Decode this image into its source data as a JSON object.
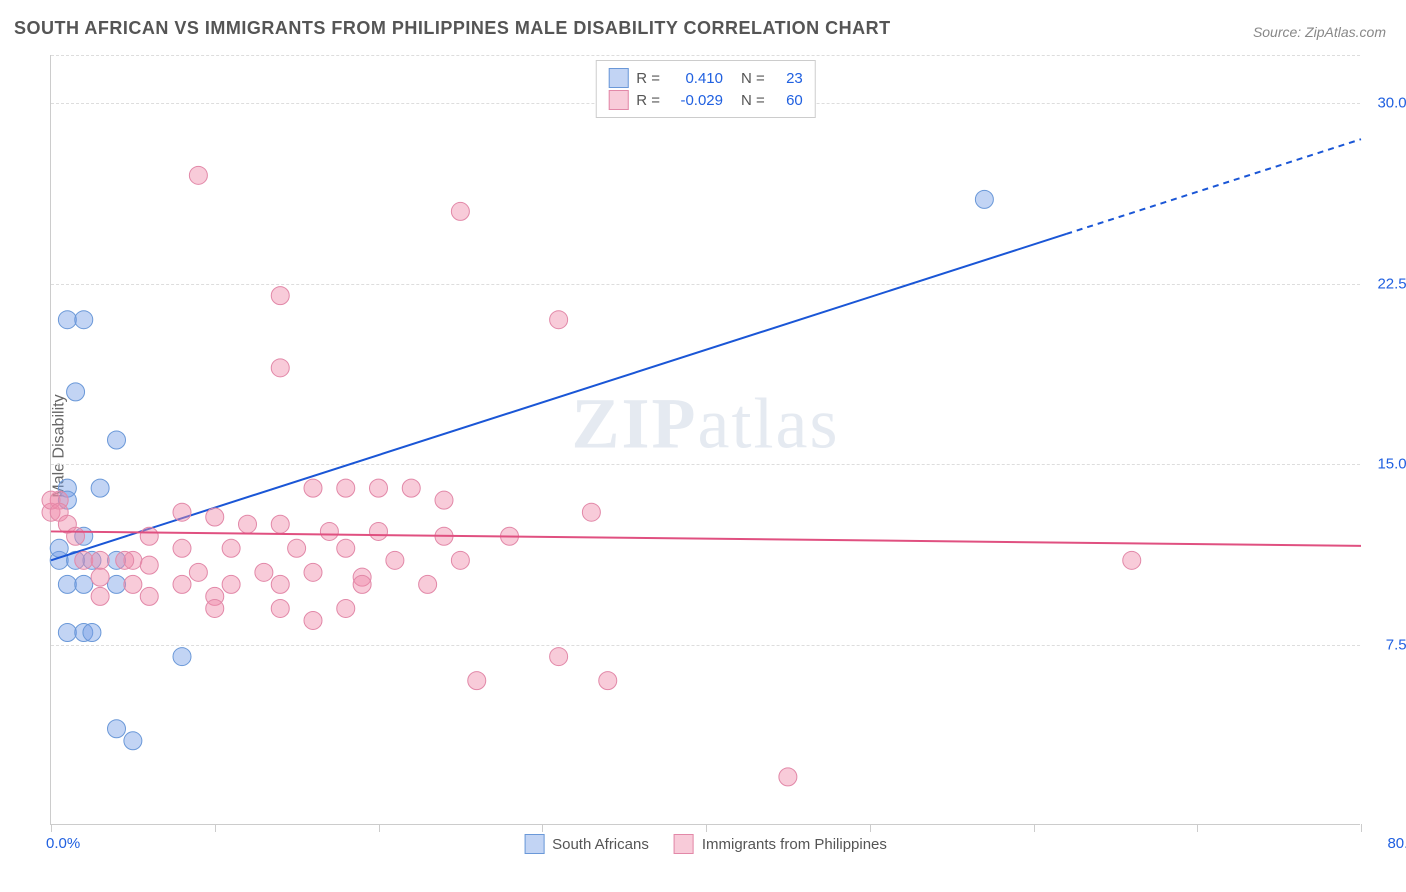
{
  "title": "SOUTH AFRICAN VS IMMIGRANTS FROM PHILIPPINES MALE DISABILITY CORRELATION CHART",
  "source": "Source: ZipAtlas.com",
  "ylabel": "Male Disability",
  "watermark": {
    "bold": "ZIP",
    "thin": "atlas"
  },
  "chart": {
    "type": "scatter",
    "xlim": [
      0,
      80
    ],
    "ylim": [
      0,
      32
    ],
    "x_min_label": "0.0%",
    "x_max_label": "80.0%",
    "x_max_label_color": "#2060e0",
    "x_min_label_color": "#2060e0",
    "yticks": [
      7.5,
      15.0,
      22.5,
      30.0
    ],
    "ytick_labels": [
      "7.5%",
      "15.0%",
      "22.5%",
      "30.0%"
    ],
    "ytick_color": "#2060e0",
    "xtick_positions": [
      0,
      10,
      20,
      30,
      40,
      50,
      60,
      70,
      80
    ],
    "grid_color": "#dddddd",
    "border_color": "#cccccc",
    "background_color": "#ffffff",
    "series": [
      {
        "name": "South Africans",
        "color_fill": "rgba(120,160,230,0.45)",
        "color_stroke": "#6a98d8",
        "marker_radius": 9,
        "regression": {
          "x1": 0,
          "y1": 11.0,
          "x2": 80,
          "y2": 28.5,
          "solid_until_x": 62,
          "color": "#1a56d6",
          "width": 2
        },
        "R": "0.410",
        "N": "23",
        "points": [
          [
            1,
            21
          ],
          [
            2,
            21
          ],
          [
            1.5,
            18
          ],
          [
            4,
            16
          ],
          [
            1,
            14
          ],
          [
            3,
            14
          ],
          [
            1,
            13.5
          ],
          [
            2,
            12
          ],
          [
            0.5,
            11
          ],
          [
            0.5,
            11.5
          ],
          [
            1.5,
            11
          ],
          [
            2.5,
            11
          ],
          [
            4,
            11
          ],
          [
            1,
            10
          ],
          [
            2,
            10
          ],
          [
            4,
            10
          ],
          [
            1,
            8
          ],
          [
            2,
            8
          ],
          [
            2.5,
            8
          ],
          [
            8,
            7
          ],
          [
            4,
            4
          ],
          [
            5,
            3.5
          ],
          [
            57,
            26
          ]
        ]
      },
      {
        "name": "Immigrants from Philippines",
        "color_fill": "rgba(240,140,170,0.45)",
        "color_stroke": "#e288a8",
        "marker_radius": 9,
        "regression": {
          "x1": 0,
          "y1": 12.2,
          "x2": 80,
          "y2": 11.6,
          "solid_until_x": 80,
          "color": "#e05080",
          "width": 2
        },
        "R": "-0.029",
        "N": "60",
        "points": [
          [
            9,
            27
          ],
          [
            25,
            25.5
          ],
          [
            14,
            22
          ],
          [
            31,
            21
          ],
          [
            14,
            19
          ],
          [
            0.5,
            13.5
          ],
          [
            0,
            13
          ],
          [
            5,
            11
          ],
          [
            16,
            14
          ],
          [
            18,
            14
          ],
          [
            20,
            14
          ],
          [
            22,
            14
          ],
          [
            24,
            13.5
          ],
          [
            33,
            13
          ],
          [
            8,
            13
          ],
          [
            10,
            12.8
          ],
          [
            12,
            12.5
          ],
          [
            14,
            12.5
          ],
          [
            17,
            12.2
          ],
          [
            20,
            12.2
          ],
          [
            24,
            12
          ],
          [
            28,
            12
          ],
          [
            6,
            12
          ],
          [
            8,
            11.5
          ],
          [
            11,
            11.5
          ],
          [
            15,
            11.5
          ],
          [
            18,
            11.5
          ],
          [
            21,
            11
          ],
          [
            25,
            11
          ],
          [
            2,
            11
          ],
          [
            3,
            11
          ],
          [
            4.5,
            11
          ],
          [
            6,
            10.8
          ],
          [
            9,
            10.5
          ],
          [
            13,
            10.5
          ],
          [
            16,
            10.5
          ],
          [
            19,
            10.3
          ],
          [
            3,
            10.3
          ],
          [
            5,
            10
          ],
          [
            8,
            10
          ],
          [
            11,
            10
          ],
          [
            14,
            10
          ],
          [
            19,
            10
          ],
          [
            23,
            10
          ],
          [
            3,
            9.5
          ],
          [
            6,
            9.5
          ],
          [
            10,
            9.5
          ],
          [
            14,
            9
          ],
          [
            18,
            9
          ],
          [
            10,
            9
          ],
          [
            16,
            8.5
          ],
          [
            31,
            7
          ],
          [
            34,
            6
          ],
          [
            26,
            6
          ],
          [
            45,
            2
          ],
          [
            66,
            11
          ],
          [
            0,
            13.5
          ],
          [
            0.5,
            13
          ],
          [
            1,
            12.5
          ],
          [
            1.5,
            12
          ]
        ]
      }
    ],
    "legend_top": {
      "r_label": "R =",
      "n_label": "N =",
      "value_color": "#2060e0"
    },
    "legend_bottom": [
      {
        "swatch_fill": "rgba(120,160,230,0.45)",
        "swatch_stroke": "#6a98d8",
        "label": "South Africans"
      },
      {
        "swatch_fill": "rgba(240,140,170,0.45)",
        "swatch_stroke": "#e288a8",
        "label": "Immigrants from Philippines"
      }
    ]
  }
}
